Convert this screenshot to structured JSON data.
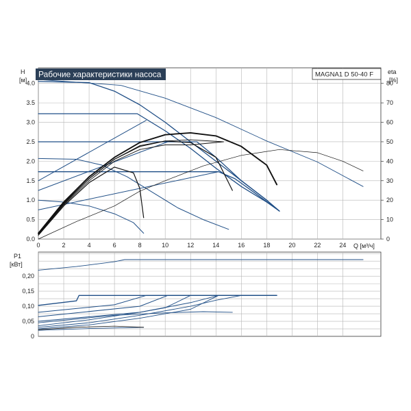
{
  "title": "Рабочие характеристики насоса",
  "model": "MAGNA1 D 50-40 F",
  "axes": {
    "h_label": "H",
    "h_unit": "[м]",
    "eta_label": "eta",
    "eta_unit": "[%]",
    "q_label": "Q [м³/ч]",
    "p1_label": "P1",
    "p1_unit": "[кВт]"
  },
  "colors": {
    "blue": "#1f4e86",
    "black": "#111111",
    "title_bg": "#2b3f57",
    "grid": "#b4b4b4"
  },
  "chart_data": [
    {
      "type": "line",
      "name": "head",
      "xlim": [
        0,
        27
      ],
      "ylim": [
        0,
        4.4
      ],
      "y2lim": [
        0,
        88
      ],
      "x_ticks": [
        "0",
        "2",
        "4",
        "6",
        "8",
        "10",
        "12",
        "14",
        "16",
        "18",
        "20",
        "22",
        "24"
      ],
      "y_ticks": [
        "0.0",
        "0.5",
        "1.0",
        "1.5",
        "2.0",
        "2.5",
        "3.0",
        "3.5",
        "4.0"
      ],
      "y2_ticks": [
        "0",
        "10",
        "20",
        "30",
        "40",
        "50",
        "60",
        "70",
        "80"
      ],
      "grid": true,
      "series": [
        {
          "color": "blue",
          "width": 1.3,
          "points": [
            [
              0,
              4.05
            ],
            [
              4,
              4.02
            ],
            [
              6,
              3.8
            ],
            [
              8,
              3.45
            ],
            [
              10,
              3.0
            ],
            [
              12,
              2.5
            ],
            [
              14,
              2.0
            ],
            [
              16,
              1.5
            ],
            [
              18,
              1.0
            ],
            [
              19,
              0.72
            ]
          ]
        },
        {
          "color": "blue",
          "width": 1.3,
          "points": [
            [
              0,
              3.22
            ],
            [
              7.8,
              3.22
            ],
            [
              10,
              2.78
            ],
            [
              12,
              2.33
            ],
            [
              14,
              1.82
            ],
            [
              16,
              1.35
            ],
            [
              18,
              0.95
            ],
            [
              19,
              0.72
            ]
          ]
        },
        {
          "color": "blue",
          "width": 1.3,
          "points": [
            [
              0,
              2.5
            ],
            [
              12.5,
              2.5
            ],
            [
              14,
              2.1
            ],
            [
              16,
              1.5
            ],
            [
              18,
              1.0
            ],
            [
              19,
              0.72
            ]
          ]
        },
        {
          "color": "blue",
          "width": 1.3,
          "points": [
            [
              0,
              1.73
            ],
            [
              14.2,
              1.73
            ],
            [
              15.5,
              1.55
            ],
            [
              17,
              1.2
            ],
            [
              19,
              0.72
            ]
          ]
        },
        {
          "color": "blue",
          "width": 1.0,
          "points": [
            [
              0,
              2.07
            ],
            [
              3,
              2.05
            ],
            [
              5,
              1.9
            ],
            [
              7,
              1.6
            ],
            [
              9,
              1.2
            ],
            [
              11,
              0.8
            ],
            [
              13,
              0.5
            ],
            [
              15,
              0.25
            ]
          ]
        },
        {
          "color": "blue",
          "width": 1.0,
          "points": [
            [
              0,
              1.0
            ],
            [
              2,
              0.95
            ],
            [
              4,
              0.85
            ],
            [
              6,
              0.65
            ],
            [
              7.5,
              0.42
            ],
            [
              8.3,
              0.15
            ]
          ]
        },
        {
          "color": "blue",
          "width": 1.0,
          "points": [
            [
              0,
              1.5
            ],
            [
              8.5,
              3.05
            ]
          ]
        },
        {
          "color": "blue",
          "width": 1.0,
          "points": [
            [
              0,
              1.25
            ],
            [
              10.2,
              2.5
            ]
          ]
        },
        {
          "color": "blue",
          "width": 1.0,
          "points": [
            [
              0,
              0.75
            ],
            [
              14.2,
              1.73
            ]
          ]
        },
        {
          "color": "blue",
          "width": 0.9,
          "points": [
            [
              0,
              4.1
            ],
            [
              6.5,
              3.95
            ],
            [
              10,
              3.62
            ],
            [
              14,
              3.12
            ],
            [
              18,
              2.52
            ],
            [
              22,
              1.98
            ],
            [
              25.6,
              1.35
            ]
          ]
        },
        {
          "color": "black",
          "width": 0.7,
          "points": [
            [
              0,
              0
            ],
            [
              3,
              0.45
            ],
            [
              6,
              0.85
            ],
            [
              8,
              1.23
            ],
            [
              10,
              1.5
            ],
            [
              13,
              1.88
            ],
            [
              16,
              2.15
            ],
            [
              19,
              2.3
            ],
            [
              22,
              2.22
            ],
            [
              24,
              2.0
            ],
            [
              25.6,
              1.75
            ]
          ]
        },
        {
          "color": "black",
          "width": 1.9,
          "points": [
            [
              0,
              0.15
            ],
            [
              2,
              0.95
            ],
            [
              4,
              1.6
            ],
            [
              6,
              2.1
            ],
            [
              8,
              2.48
            ],
            [
              10,
              2.68
            ],
            [
              12,
              2.73
            ],
            [
              14,
              2.65
            ],
            [
              16,
              2.38
            ],
            [
              18,
              1.9
            ],
            [
              18.8,
              1.4
            ]
          ]
        },
        {
          "color": "black",
          "width": 1.2,
          "points": [
            [
              0,
              0.15
            ],
            [
              2,
              0.92
            ],
            [
              4,
              1.55
            ],
            [
              6,
              2.05
            ],
            [
              8,
              2.38
            ],
            [
              10,
              2.52
            ],
            [
              12,
              2.48
            ],
            [
              14,
              2.1
            ],
            [
              15.3,
              1.25
            ]
          ]
        },
        {
          "color": "black",
          "width": 0.9,
          "points": [
            [
              0,
              0.12
            ],
            [
              2,
              0.9
            ],
            [
              4,
              1.55
            ],
            [
              6,
              2.05
            ],
            [
              8,
              2.4
            ],
            [
              10,
              2.52
            ],
            [
              12,
              2.55
            ],
            [
              14.6,
              2.5
            ]
          ]
        },
        {
          "color": "black",
          "width": 0.9,
          "points": [
            [
              0,
              0.12
            ],
            [
              2,
              0.88
            ],
            [
              4,
              1.5
            ],
            [
              6,
              2.0
            ],
            [
              8,
              2.3
            ],
            [
              10,
              2.42
            ],
            [
              12,
              2.42
            ],
            [
              14.6,
              2.5
            ]
          ]
        },
        {
          "color": "black",
          "width": 1.2,
          "points": [
            [
              0,
              0.1
            ],
            [
              2,
              0.85
            ],
            [
              4,
              1.45
            ],
            [
              6,
              1.85
            ],
            [
              7.5,
              1.7
            ],
            [
              8,
              1.3
            ],
            [
              8.3,
              0.55
            ]
          ]
        }
      ]
    },
    {
      "type": "line",
      "name": "power",
      "xlim": [
        0,
        27
      ],
      "ylim": [
        0,
        0.28
      ],
      "y_ticks": [
        "0",
        "0,05",
        "0,10",
        "0,15",
        "0,20"
      ],
      "y_tick_values": [
        0,
        0.05,
        0.1,
        0.15,
        0.2
      ],
      "grid": true,
      "series": [
        {
          "color": "blue",
          "width": 0.9,
          "points": [
            [
              0,
              0.22
            ],
            [
              3,
              0.232
            ],
            [
              6,
              0.248
            ],
            [
              6.8,
              0.255
            ],
            [
              25.6,
              0.255
            ]
          ]
        },
        {
          "color": "blue",
          "width": 1.3,
          "points": [
            [
              0,
              0.103
            ],
            [
              3,
              0.118
            ],
            [
              3.2,
              0.136
            ],
            [
              18.8,
              0.136
            ]
          ]
        },
        {
          "color": "blue",
          "width": 1.0,
          "points": [
            [
              0,
              0.08
            ],
            [
              6,
              0.105
            ],
            [
              8.5,
              0.136
            ],
            [
              18.8,
              0.136
            ]
          ]
        },
        {
          "color": "blue",
          "width": 1.0,
          "points": [
            [
              0,
              0.065
            ],
            [
              8,
              0.1
            ],
            [
              10.2,
              0.136
            ],
            [
              18.8,
              0.136
            ]
          ]
        },
        {
          "color": "blue",
          "width": 1.0,
          "points": [
            [
              0,
              0.05
            ],
            [
              8,
              0.08
            ],
            [
              12,
              0.112
            ],
            [
              14.2,
              0.136
            ],
            [
              18.8,
              0.136
            ]
          ]
        },
        {
          "color": "blue",
          "width": 0.9,
          "points": [
            [
              0,
              0.045
            ],
            [
              6,
              0.07
            ],
            [
              10,
              0.078
            ],
            [
              13,
              0.082
            ],
            [
              15.3,
              0.08
            ]
          ]
        },
        {
          "color": "blue",
          "width": 0.9,
          "points": [
            [
              0,
              0.035
            ],
            [
              4,
              0.055
            ],
            [
              8,
              0.08
            ],
            [
              10,
              0.095
            ],
            [
              12,
              0.136
            ]
          ]
        },
        {
          "color": "blue",
          "width": 0.9,
          "points": [
            [
              0,
              0.03
            ],
            [
              4,
              0.045
            ],
            [
              8,
              0.07
            ],
            [
              12,
              0.1
            ],
            [
              14,
              0.12
            ],
            [
              16,
              0.136
            ]
          ]
        },
        {
          "color": "blue",
          "width": 0.9,
          "points": [
            [
              0,
              0.025
            ],
            [
              4,
              0.038
            ],
            [
              8,
              0.06
            ],
            [
              12,
              0.09
            ],
            [
              14.2,
              0.136
            ]
          ]
        },
        {
          "color": "blue",
          "width": 0.9,
          "points": [
            [
              0,
              0.02
            ],
            [
              4,
              0.026
            ],
            [
              8.3,
              0.03
            ]
          ]
        },
        {
          "color": "black",
          "width": 0.8,
          "points": [
            [
              0,
              0.022
            ],
            [
              3,
              0.03
            ],
            [
              6,
              0.034
            ],
            [
              8.3,
              0.03
            ]
          ]
        }
      ]
    }
  ]
}
